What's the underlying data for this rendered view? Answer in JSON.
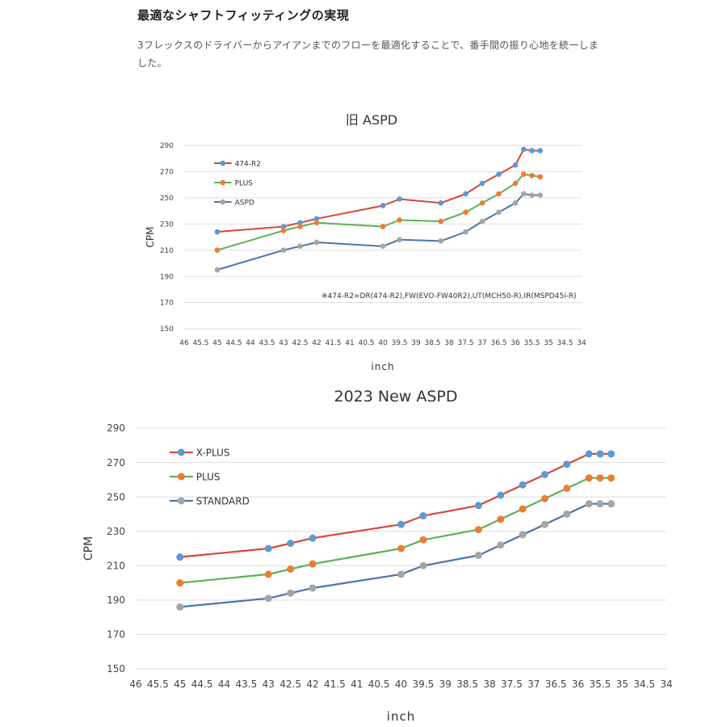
{
  "page": {
    "heading": "最適なシャフトフィッティングの実現",
    "intro": "3フレックスのドライバーからアイアンまでのフローを最適化することで、番手間の振り心地を統一しました。"
  },
  "colors": {
    "red": "#d9463a",
    "green": "#5bb255",
    "blue": "#4a76a8",
    "marker_blue": "#5b9bd5",
    "marker_orange": "#ed7d31",
    "marker_gray": "#a5a5a5",
    "grid": "#dddddd"
  },
  "chart_data": [
    {
      "type": "line",
      "title": "旧 ASPD",
      "xlabel": "inch",
      "ylabel": "CPM",
      "xlim": [
        46,
        34
      ],
      "ylim": [
        150,
        290
      ],
      "y_step": 20,
      "x_reversed": true,
      "grid": "horizontal",
      "legend_placement": "top-left",
      "x_tick_labels": [
        "46",
        "45.5",
        "45",
        "44.5",
        "44",
        "43.5",
        "43",
        "42.5",
        "42",
        "41.5",
        "41",
        "40.5",
        "40",
        "39.5",
        "39",
        "38.5",
        "38",
        "37.5",
        "37",
        "36.5",
        "36",
        "35.5",
        "35",
        "34.5",
        "34"
      ],
      "annotation": "※474-R2=DR(474-R2),FW(EVO-FW40R2),UT(MCH50-R),IR(MSPD45i-R)",
      "series": [
        {
          "name": "474-R2",
          "line_color": "#d9463a",
          "marker_color": "#5b9bd5",
          "x": [
            45,
            43,
            42.5,
            42,
            40,
            39.5,
            38.25,
            37.5,
            37,
            36.5,
            36,
            35.75,
            35.5,
            35.25
          ],
          "y": [
            224,
            228,
            231,
            234,
            244,
            249,
            246,
            253,
            261,
            268,
            275,
            287,
            286,
            286
          ]
        },
        {
          "name": "PLUS",
          "line_color": "#5bb255",
          "marker_color": "#ed7d31",
          "x": [
            45,
            43,
            42.5,
            42,
            40,
            39.5,
            38.25,
            37.5,
            37,
            36.5,
            36,
            35.75,
            35.5,
            35.25
          ],
          "y": [
            210,
            225,
            228,
            231,
            228,
            233,
            232,
            239,
            246,
            253,
            261,
            268,
            267,
            266
          ]
        },
        {
          "name": "ASPD",
          "line_color": "#4a76a8",
          "marker_color": "#a5a5a5",
          "x": [
            45,
            43,
            42.5,
            42,
            40,
            39.5,
            38.25,
            37.5,
            37,
            36.5,
            36,
            35.75,
            35.5,
            35.25
          ],
          "y": [
            195,
            210,
            213,
            216,
            213,
            218,
            217,
            224,
            232,
            239,
            246,
            253,
            252,
            252
          ]
        }
      ]
    },
    {
      "type": "line",
      "title": "2023 New ASPD",
      "xlabel": "inch",
      "ylabel": "CPM",
      "xlim": [
        46,
        34
      ],
      "ylim": [
        150,
        290
      ],
      "y_step": 20,
      "x_reversed": true,
      "grid": "horizontal",
      "legend_placement": "top-left",
      "x_tick_labels": [
        "46",
        "45.5",
        "45",
        "44.5",
        "44",
        "43.5",
        "43",
        "42.5",
        "42",
        "41.5",
        "41",
        "40.5",
        "40",
        "39.5",
        "39",
        "38.5",
        "38",
        "37.5",
        "37",
        "36.5",
        "36",
        "35.5",
        "35",
        "34.5",
        "34"
      ],
      "annotation": "",
      "series": [
        {
          "name": "X-PLUS",
          "line_color": "#d9463a",
          "marker_color": "#5b9bd5",
          "x": [
            45,
            43,
            42.5,
            42,
            40,
            39.5,
            38.25,
            37.75,
            37.25,
            36.75,
            36.25,
            35.75,
            35.5,
            35.25
          ],
          "y": [
            215,
            220,
            223,
            226,
            234,
            239,
            245,
            251,
            257,
            263,
            269,
            275,
            275,
            275
          ]
        },
        {
          "name": "PLUS",
          "line_color": "#5bb255",
          "marker_color": "#ed7d31",
          "x": [
            45,
            43,
            42.5,
            42,
            40,
            39.5,
            38.25,
            37.75,
            37.25,
            36.75,
            36.25,
            35.75,
            35.5,
            35.25
          ],
          "y": [
            200,
            205,
            208,
            211,
            220,
            225,
            231,
            237,
            243,
            249,
            255,
            261,
            261,
            261
          ]
        },
        {
          "name": "STANDARD",
          "line_color": "#4a76a8",
          "marker_color": "#a5a5a5",
          "x": [
            45,
            43,
            42.5,
            42,
            40,
            39.5,
            38.25,
            37.75,
            37.25,
            36.75,
            36.25,
            35.75,
            35.5,
            35.25
          ],
          "y": [
            186,
            191,
            194,
            197,
            205,
            210,
            216,
            222,
            228,
            234,
            240,
            246,
            246,
            246
          ]
        }
      ]
    }
  ]
}
